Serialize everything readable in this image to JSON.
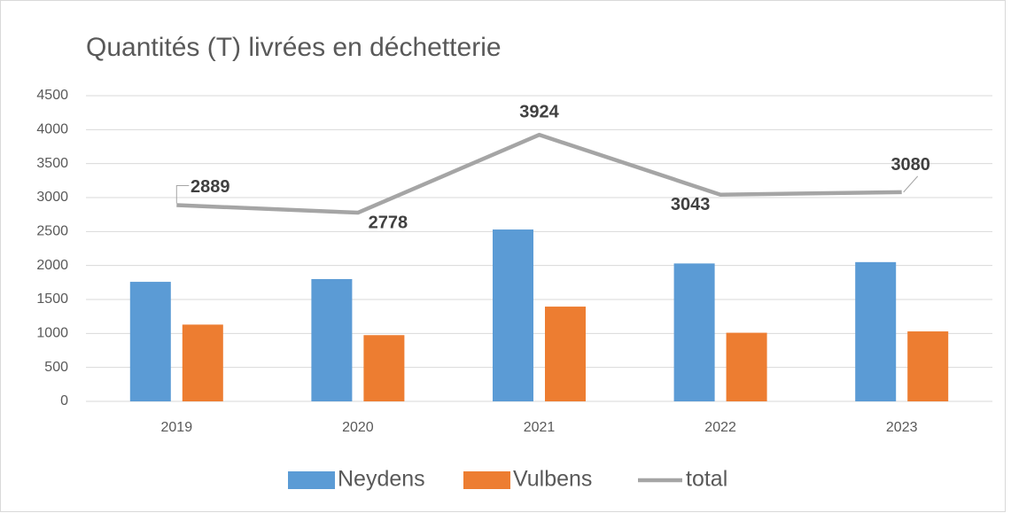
{
  "chart_data": {
    "type": "bar",
    "title": "Quantités (T) livrées en déchetterie",
    "categories": [
      "2019",
      "2020",
      "2021",
      "2022",
      "2023"
    ],
    "series": [
      {
        "name": "Neydens",
        "color": "#5b9bd5",
        "type": "bar",
        "values": [
          1760,
          1800,
          2530,
          2030,
          2050
        ]
      },
      {
        "name": "Vulbens",
        "color": "#ed7d31",
        "type": "bar",
        "values": [
          1130,
          975,
          1395,
          1010,
          1030
        ]
      },
      {
        "name": "total",
        "color": "#a5a5a5",
        "type": "line",
        "values": [
          2889,
          2778,
          3924,
          3043,
          3080
        ]
      }
    ],
    "ylim": [
      0,
      4500
    ],
    "yticks": [
      0,
      500,
      1000,
      1500,
      2000,
      2500,
      3000,
      3500,
      4000,
      4500
    ],
    "grid": true,
    "legend": "bottom"
  }
}
